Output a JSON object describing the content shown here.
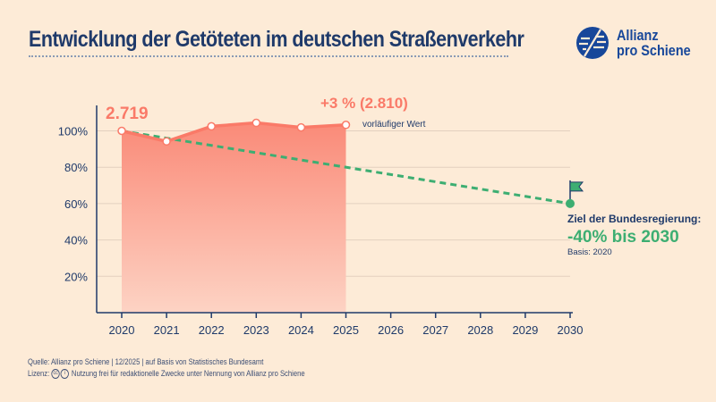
{
  "header": {
    "title": "Entwicklung der Getöteten im deutschen Straßenverkehr"
  },
  "logo": {
    "line1": "Allianz",
    "line2": "pro Schiene",
    "color": "#17479a"
  },
  "footer": {
    "source": "Quelle: Allianz pro Schiene | 12/2025 | auf Basis von Statistisches Bundesamt",
    "license_label": "Lizenz:",
    "license_icons": [
      "cc-icon",
      "attribution-icon"
    ],
    "license_text": "Nutzung frei für redaktionelle Zwecke unter Nennung von Allianz pro Schiene"
  },
  "chart_data": {
    "type": "area",
    "title": "",
    "x_ticks": [
      "2020",
      "2021",
      "2022",
      "2023",
      "2024",
      "2025",
      "2026",
      "2027",
      "2028",
      "2029",
      "2030"
    ],
    "y_ticks": [
      "20%",
      "40%",
      "60%",
      "80%",
      "100%"
    ],
    "ylim": [
      0,
      110
    ],
    "grid": "horizontal",
    "series": [
      {
        "x": [
          2020,
          2021,
          2022,
          2023,
          2024,
          2025
        ],
        "values": [
          100,
          94.2,
          102.5,
          104.4,
          101.9,
          103.3
        ],
        "color": "#fa7a68"
      }
    ],
    "target": {
      "x": [
        2020,
        2030
      ],
      "values": [
        100,
        60
      ],
      "color": "#3dae72",
      "style": "dashed"
    },
    "annotations": {
      "start": "2.719",
      "end": "+3 % (2.810)",
      "end_note": "vorläufiger Wert",
      "goal_heading": "Ziel der Bundesregierung:",
      "goal_value": "-40% bis 2030",
      "goal_basis": "Basis: 2020"
    }
  }
}
